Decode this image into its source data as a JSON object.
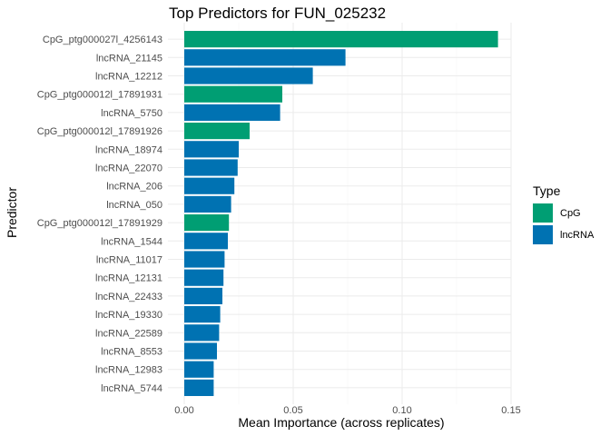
{
  "chart_data": {
    "type": "bar",
    "orientation": "horizontal",
    "title": "Top Predictors for FUN_025232",
    "xlabel": "Mean Importance (across replicates)",
    "ylabel": "Predictor",
    "xlim": [
      0,
      0.15
    ],
    "xticks": [
      0.0,
      0.05,
      0.1,
      0.15
    ],
    "xtick_labels": [
      "0.00",
      "0.05",
      "0.10",
      "0.15"
    ],
    "grid": true,
    "legend": {
      "title": "Type",
      "placement": "right",
      "entries": [
        {
          "label": "CpG",
          "color": "#009E73"
        },
        {
          "label": "lncRNA",
          "color": "#0072B2"
        }
      ]
    },
    "bars": [
      {
        "category": "CpG_ptg000027l_4256143",
        "value": 0.144,
        "type": "CpG"
      },
      {
        "category": "lncRNA_21145",
        "value": 0.074,
        "type": "lncRNA"
      },
      {
        "category": "lncRNA_12212",
        "value": 0.059,
        "type": "lncRNA"
      },
      {
        "category": "CpG_ptg000012l_17891931",
        "value": 0.045,
        "type": "CpG"
      },
      {
        "category": "lncRNA_5750",
        "value": 0.044,
        "type": "lncRNA"
      },
      {
        "category": "CpG_ptg000012l_17891926",
        "value": 0.03,
        "type": "CpG"
      },
      {
        "category": "lncRNA_18974",
        "value": 0.025,
        "type": "lncRNA"
      },
      {
        "category": "lncRNA_22070",
        "value": 0.0245,
        "type": "lncRNA"
      },
      {
        "category": "lncRNA_206",
        "value": 0.023,
        "type": "lncRNA"
      },
      {
        "category": "lncRNA_050",
        "value": 0.0215,
        "type": "lncRNA"
      },
      {
        "category": "CpG_ptg000012l_17891929",
        "value": 0.0205,
        "type": "CpG"
      },
      {
        "category": "lncRNA_1544",
        "value": 0.02,
        "type": "lncRNA"
      },
      {
        "category": "lncRNA_11017",
        "value": 0.0185,
        "type": "lncRNA"
      },
      {
        "category": "lncRNA_12131",
        "value": 0.018,
        "type": "lncRNA"
      },
      {
        "category": "lncRNA_22433",
        "value": 0.0175,
        "type": "lncRNA"
      },
      {
        "category": "lncRNA_19330",
        "value": 0.0165,
        "type": "lncRNA"
      },
      {
        "category": "lncRNA_22589",
        "value": 0.016,
        "type": "lncRNA"
      },
      {
        "category": "lncRNA_8553",
        "value": 0.015,
        "type": "lncRNA"
      },
      {
        "category": "lncRNA_12983",
        "value": 0.0135,
        "type": "lncRNA"
      },
      {
        "category": "lncRNA_5744",
        "value": 0.0135,
        "type": "lncRNA"
      }
    ]
  }
}
